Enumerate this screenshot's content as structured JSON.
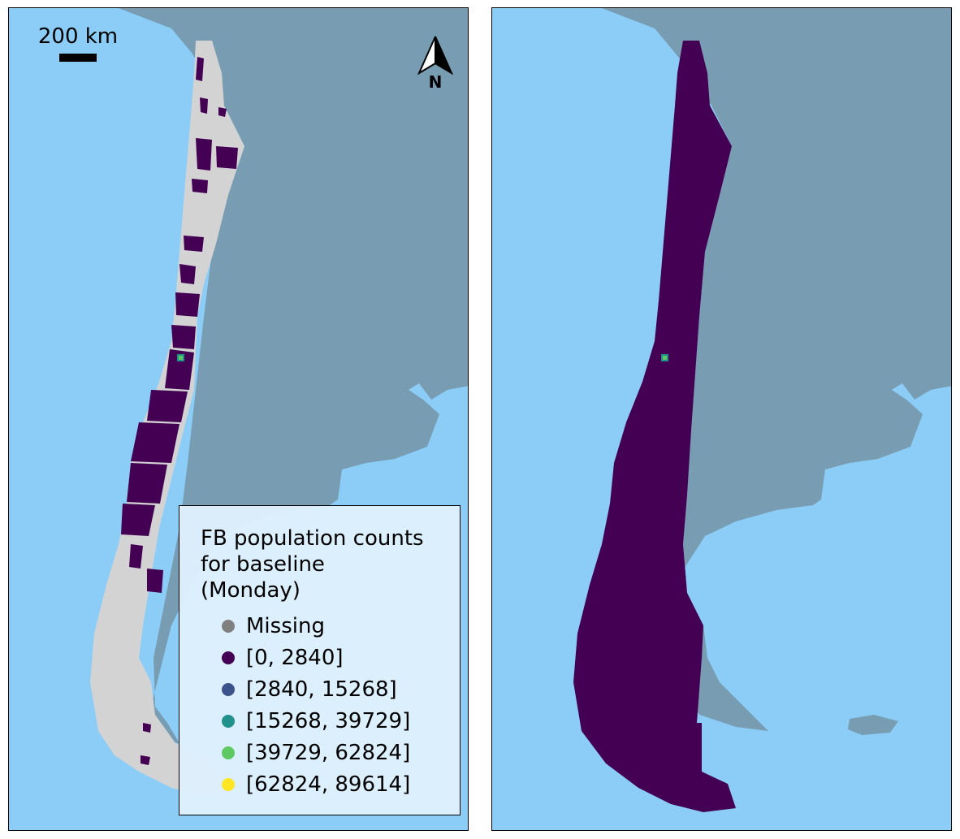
{
  "colors": {
    "ocean": "#8ccdf7",
    "land": "#789db3",
    "missing_area": "#d3d3d3",
    "class_0": "#440154",
    "class_1": "#3b528b",
    "class_2": "#21918c",
    "class_3": "#5ec962",
    "class_4": "#fde725"
  },
  "left_map": {
    "scalebar_label": "200 km",
    "north_label": "N",
    "legend": {
      "title": "FB population counts\nfor baseline\n(Monday)",
      "items": [
        {
          "label": "Missing",
          "color": "#808080"
        },
        {
          "label": "[0, 2840]",
          "color": "#440154"
        },
        {
          "label": "[2840, 15268]",
          "color": "#3b528b"
        },
        {
          "label": "[15268, 39729]",
          "color": "#21918c"
        },
        {
          "label": "[39729, 62824]",
          "color": "#5ec962"
        },
        {
          "label": "[62824, 89614]",
          "color": "#fde725"
        }
      ]
    }
  }
}
